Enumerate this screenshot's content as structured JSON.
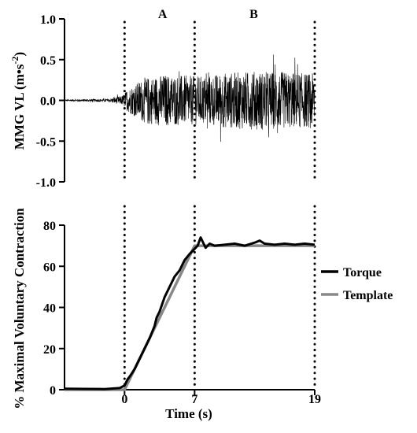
{
  "chart_data": [
    {
      "type": "line",
      "ylabel": "MMG VL (m•s",
      "ylabel_sup": "-2",
      "ylabel_close": ")",
      "ylim": [
        -1.0,
        1.0
      ],
      "yticks": [
        "1.0",
        "0.5",
        "0.0",
        "-0.5",
        "-1.0"
      ],
      "ytick_values": [
        1.0,
        0.5,
        0.0,
        -0.5,
        -1.0
      ],
      "xlim": [
        -6,
        19
      ],
      "phase_lines": [
        0,
        7,
        19
      ],
      "phase_labels": [
        {
          "label": "A",
          "x": 3.8
        },
        {
          "label": "B",
          "x": 12.9
        }
      ],
      "series": [
        {
          "color": "#000000",
          "envelope": {
            "x": [
              -6,
              -1.5,
              -0.2,
              0.3,
              2,
              4,
              7,
              8,
              10,
              13,
              16,
              19
            ],
            "amplitude": [
              0.01,
              0.02,
              0.06,
              0.14,
              0.28,
              0.32,
              0.3,
              0.3,
              0.34,
              0.36,
              0.35,
              0.33
            ]
          }
        }
      ]
    },
    {
      "type": "line",
      "ylabel": "% Maximal  Voluntary Contraction",
      "xlabel": "Time (s)",
      "ylim": [
        0,
        80
      ],
      "yticks": [
        "80",
        "60",
        "40",
        "20",
        "0"
      ],
      "ytick_values": [
        80,
        60,
        40,
        20,
        0
      ],
      "xlim": [
        -6,
        19
      ],
      "xticks": [
        "0",
        "7",
        "19"
      ],
      "xtick_values": [
        0,
        7,
        19
      ],
      "phase_lines": [
        0,
        7,
        19
      ],
      "legend_position": "right",
      "series": [
        {
          "name": "Torque",
          "color": "#000000",
          "x": [
            -6,
            -4,
            -2,
            -0.5,
            0,
            0.3,
            0.6,
            1.0,
            1.5,
            2.0,
            2.5,
            3.0,
            3.2,
            3.5,
            4.0,
            4.5,
            5.0,
            5.5,
            6.0,
            6.5,
            7.0,
            7.3,
            7.6,
            7.8,
            8.1,
            8.5,
            9,
            10,
            11,
            12,
            13,
            13.5,
            14,
            15,
            16,
            17,
            18,
            19
          ],
          "y": [
            0.5,
            0.4,
            0.3,
            0.8,
            2,
            5,
            7,
            10,
            15,
            20,
            25,
            31,
            35,
            38,
            45,
            50,
            55,
            58,
            63,
            66,
            68.5,
            70,
            74,
            72,
            69,
            71,
            70,
            70.5,
            71,
            70,
            71.5,
            72.5,
            71,
            70.5,
            71,
            70.5,
            71,
            70.5
          ]
        },
        {
          "name": "Template",
          "color": "#888888",
          "x": [
            -6,
            0,
            7,
            19
          ],
          "y": [
            0,
            0,
            70,
            70
          ]
        }
      ]
    }
  ]
}
